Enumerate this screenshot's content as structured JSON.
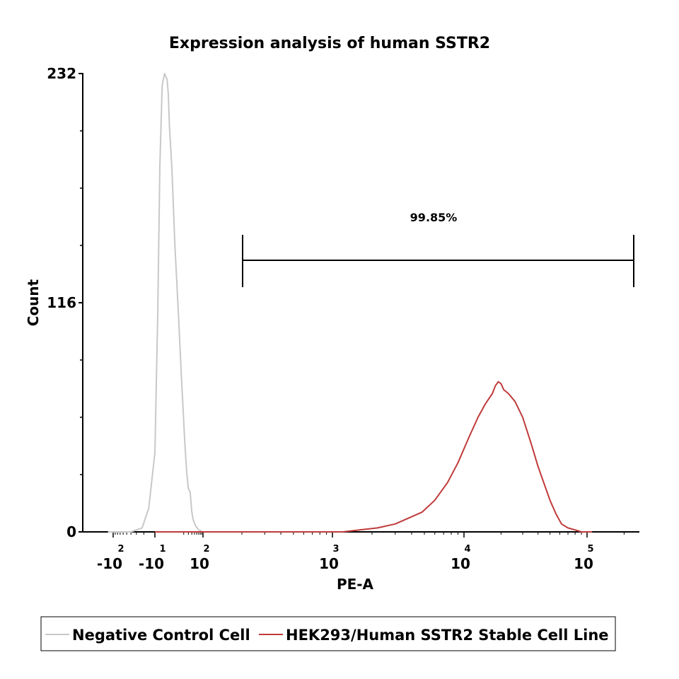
{
  "chart_data": {
    "type": "histogram",
    "title": "Expression analysis of human SSTR2",
    "xlabel": "PE-A",
    "ylabel": "Count",
    "x_scale": "biexponential",
    "ylim": [
      0,
      232
    ],
    "y_ticks": [
      "0",
      "116",
      "232"
    ],
    "x_ticks": [
      {
        "base": "-10",
        "exp": "2",
        "value": -100
      },
      {
        "base": "-10",
        "exp": "1",
        "value": -10
      },
      {
        "base": "10",
        "exp": "2",
        "value": 100
      },
      {
        "base": "10",
        "exp": "3",
        "value": 1000
      },
      {
        "base": "10",
        "exp": "4",
        "value": 10000
      },
      {
        "base": "10",
        "exp": "5",
        "value": 100000
      }
    ],
    "gate": {
      "label": "99.85%",
      "x_range": [
        300,
        300000
      ]
    },
    "series": [
      {
        "name": "Negative Control Cell",
        "color": "#c8c8c8",
        "points": [
          [
            -130,
            0
          ],
          [
            -40,
            0
          ],
          [
            -22,
            2
          ],
          [
            -15,
            12
          ],
          [
            -10,
            40
          ],
          [
            -7,
            110
          ],
          [
            -5,
            185
          ],
          [
            -3,
            226
          ],
          [
            -1,
            232
          ],
          [
            1,
            229
          ],
          [
            2,
            222
          ],
          [
            3,
            205
          ],
          [
            5,
            185
          ],
          [
            8,
            145
          ],
          [
            12,
            110
          ],
          [
            16,
            80
          ],
          [
            22,
            45
          ],
          [
            26,
            30
          ],
          [
            30,
            22
          ],
          [
            35,
            20
          ],
          [
            38,
            14
          ],
          [
            40,
            10
          ],
          [
            45,
            6
          ],
          [
            55,
            3
          ],
          [
            70,
            1
          ],
          [
            100,
            0
          ],
          [
            400,
            0
          ]
        ]
      },
      {
        "name": "HEK293/Human SSTR2 Stable Cell Line",
        "color": "#c03a3a",
        "points": [
          [
            -10,
            0
          ],
          [
            1200,
            0
          ],
          [
            1600,
            1
          ],
          [
            2200,
            2
          ],
          [
            3000,
            4
          ],
          [
            3800,
            7
          ],
          [
            4800,
            10
          ],
          [
            6000,
            16
          ],
          [
            7500,
            25
          ],
          [
            9000,
            35
          ],
          [
            11000,
            48
          ],
          [
            13000,
            58
          ],
          [
            15000,
            65
          ],
          [
            17000,
            70
          ],
          [
            18000,
            74
          ],
          [
            19000,
            76
          ],
          [
            20000,
            75
          ],
          [
            21000,
            72
          ],
          [
            23000,
            70
          ],
          [
            26000,
            66
          ],
          [
            30000,
            58
          ],
          [
            35000,
            45
          ],
          [
            40000,
            33
          ],
          [
            45000,
            24
          ],
          [
            50000,
            16
          ],
          [
            56000,
            9
          ],
          [
            62000,
            4
          ],
          [
            70000,
            2
          ],
          [
            80000,
            1
          ],
          [
            90000,
            0
          ],
          [
            110000,
            0
          ]
        ]
      }
    ]
  },
  "legend": {
    "items": [
      {
        "label": "Negative Control Cell",
        "color": "#c8c8c8"
      },
      {
        "label": "HEK293/Human SSTR2 Stable Cell Line",
        "color": "#c03a3a"
      }
    ]
  }
}
